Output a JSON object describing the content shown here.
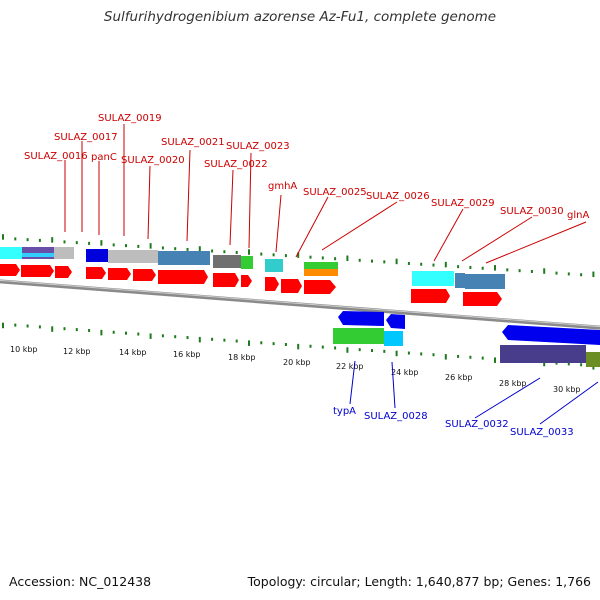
{
  "title": "Sulfurihydrogenibium azorense Az-Fu1, complete genome",
  "footer": {
    "accession": "Accession: NC_012438",
    "summary": "Topology: circular; Length: 1,640,877 bp; Genes: 1,766"
  },
  "colors": {
    "forward_gene": "#ff0000",
    "reverse_gene": "#0000ff",
    "backbone": "#808080",
    "tick": "#1e7a1e",
    "forward_label": "#cc0000",
    "reverse_label": "#0000cc"
  },
  "scale_labels": [
    "10 kbp",
    "12 kbp",
    "14 kbp",
    "16 kbp",
    "18 kbp",
    "20 kbp",
    "22 kbp",
    "24 kbp",
    "26 kbp",
    "28 kbp",
    "30 kbp"
  ],
  "forward_gene_labels": [
    "SULAZ_0016",
    "SULAZ_0017",
    "panC",
    "SULAZ_0019",
    "SULAZ_0020",
    "SULAZ_0021",
    "SULAZ_0022",
    "SULAZ_0023",
    "gmhA",
    "SULAZ_0025",
    "SULAZ_0026",
    "SULAZ_0029",
    "SULAZ_0030",
    "glnA"
  ],
  "reverse_gene_labels": [
    "typA",
    "SULAZ_0028",
    "SULAZ_0032",
    "SULAZ_0033"
  ]
}
